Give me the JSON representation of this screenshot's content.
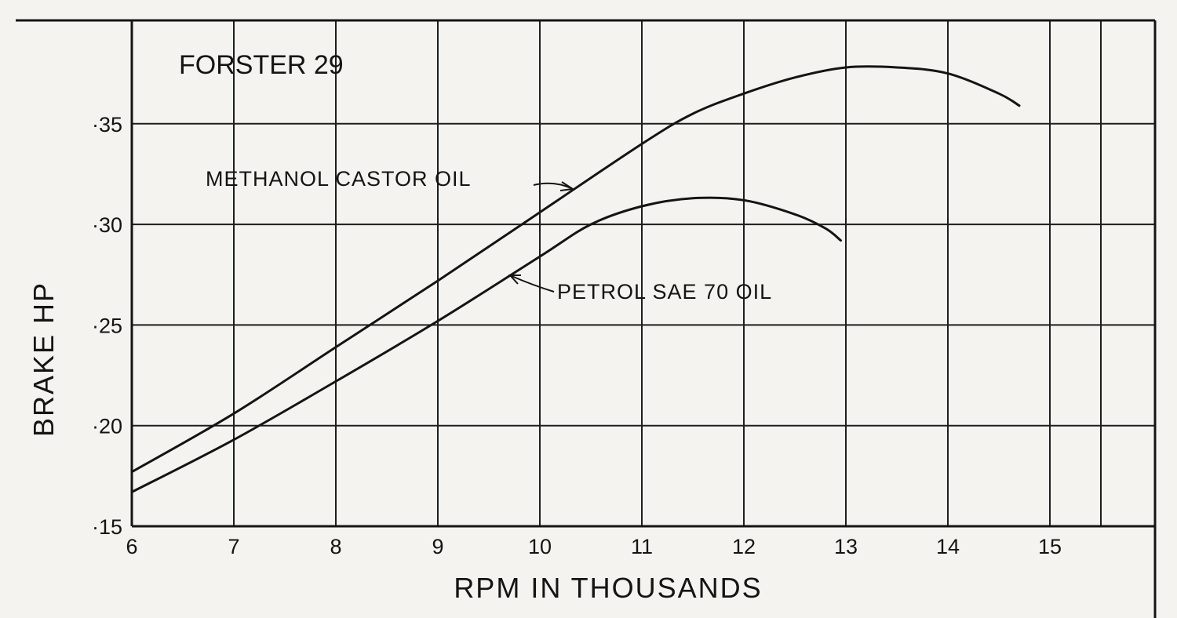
{
  "chart_data": {
    "type": "line",
    "title": "FORSTER 29",
    "xlabel": "RPM IN THOUSANDS",
    "ylabel": "BRAKE HP",
    "xlim": [
      6,
      15
    ],
    "ylim": [
      0.15,
      0.4
    ],
    "grid": true,
    "legend": "none",
    "x_ticks": [
      {
        "value": 6,
        "label": "6"
      },
      {
        "value": 7,
        "label": "7"
      },
      {
        "value": 8,
        "label": "8"
      },
      {
        "value": 9,
        "label": "9"
      },
      {
        "value": 10,
        "label": "10"
      },
      {
        "value": 11,
        "label": "11"
      },
      {
        "value": 12,
        "label": "12"
      },
      {
        "value": 13,
        "label": "13"
      },
      {
        "value": 14,
        "label": "14"
      },
      {
        "value": 15,
        "label": "15"
      }
    ],
    "y_ticks": [
      {
        "value": 0.15,
        "label": "·15"
      },
      {
        "value": 0.2,
        "label": "·20"
      },
      {
        "value": 0.25,
        "label": "·25"
      },
      {
        "value": 0.3,
        "label": "·30"
      },
      {
        "value": 0.35,
        "label": "·35"
      }
    ],
    "series": [
      {
        "name": "METHANOL CASTOR OIL",
        "x": [
          6.0,
          7.0,
          8.0,
          9.0,
          10.0,
          11.0,
          11.5,
          12.0,
          12.5,
          13.0,
          13.5,
          14.0,
          14.5,
          14.7
        ],
        "y": [
          0.177,
          0.206,
          0.239,
          0.272,
          0.306,
          0.34,
          0.355,
          0.365,
          0.373,
          0.378,
          0.378,
          0.375,
          0.365,
          0.359
        ]
      },
      {
        "name": "PETROL SAE 70 OIL",
        "x": [
          6.0,
          7.0,
          8.0,
          9.0,
          10.0,
          10.5,
          11.0,
          11.5,
          12.0,
          12.5,
          12.8,
          12.95
        ],
        "y": [
          0.167,
          0.193,
          0.222,
          0.252,
          0.284,
          0.3,
          0.309,
          0.313,
          0.312,
          0.305,
          0.298,
          0.292
        ]
      }
    ],
    "annotations": [
      {
        "text": "METHANOL CASTOR OIL",
        "series": 0,
        "points_to_x": 10.25
      },
      {
        "text": "PETROL SAE 70 OIL",
        "series": 1,
        "points_to_x": 9.7
      }
    ]
  }
}
